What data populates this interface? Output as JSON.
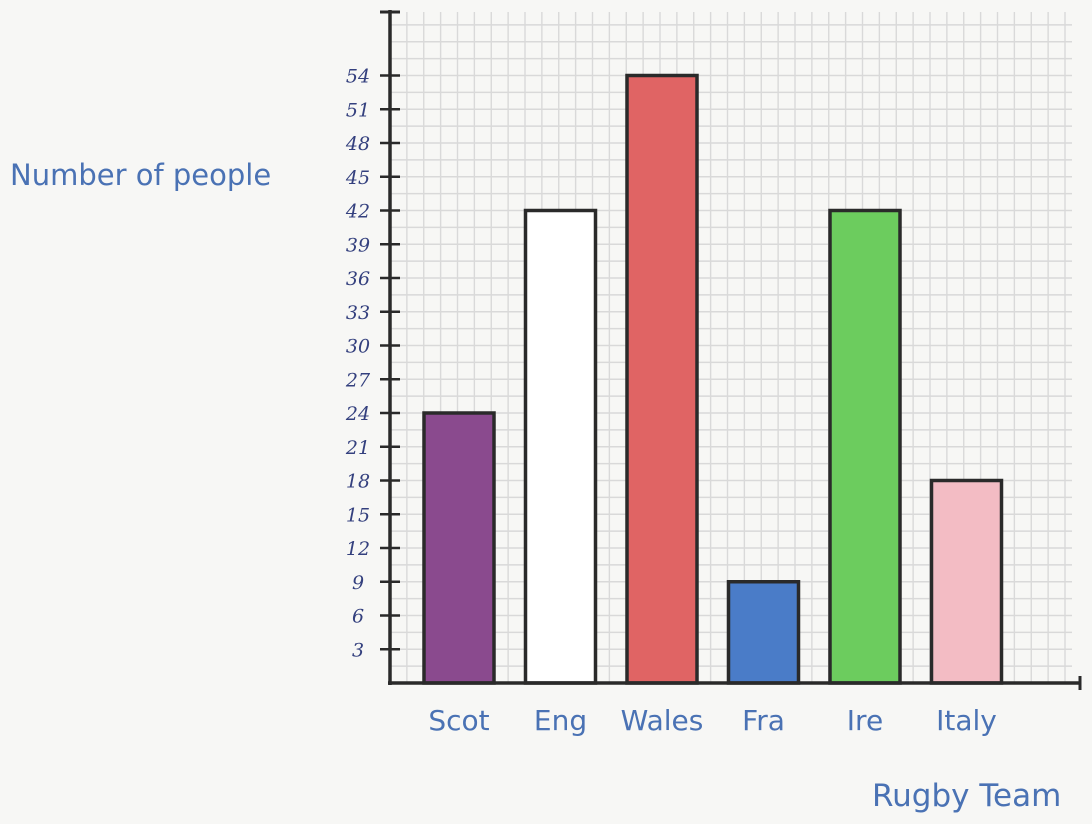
{
  "chart_data": {
    "type": "bar",
    "title": "",
    "xlabel": "Rugby Team",
    "ylabel": "Number of people",
    "categories": [
      "Scot",
      "Eng",
      "Wales",
      "Fra",
      "Ire",
      "Italy"
    ],
    "values": [
      24,
      42,
      54,
      9,
      42,
      18
    ],
    "ylim": [
      0,
      54
    ],
    "yticks": [
      "3",
      "6",
      "9",
      "12",
      "15",
      "18",
      "21",
      "24",
      "27",
      "30",
      "33",
      "36",
      "39",
      "42",
      "45",
      "48",
      "51",
      "54"
    ],
    "grid": true,
    "legend": "none",
    "colors": [
      "#8a4a8e",
      "#ffffff",
      "#e06464",
      "#4a7cc8",
      "#6ccc5e",
      "#f3bcc4"
    ],
    "axis_color": "#2a2a2a",
    "label_color": "#4a72b4",
    "tick_color": "#34407e",
    "grid_color": "#d9d9d9"
  }
}
